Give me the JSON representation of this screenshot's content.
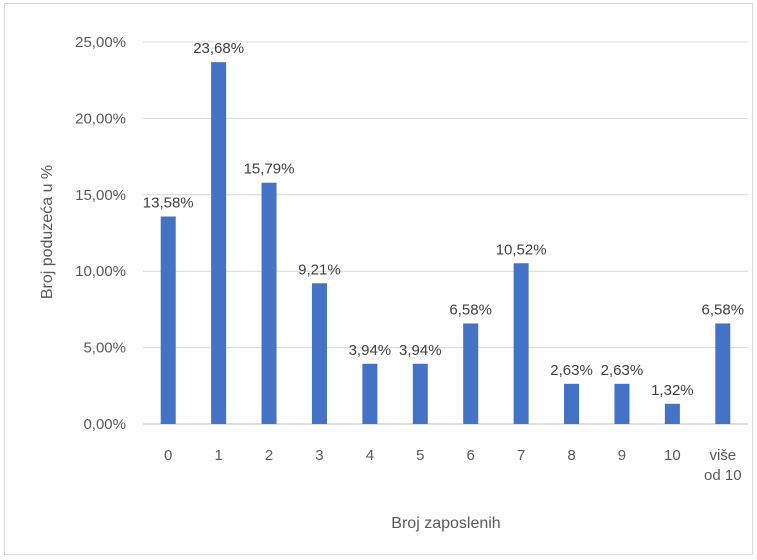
{
  "chart_data": {
    "type": "bar",
    "categories": [
      "0",
      "1",
      "2",
      "3",
      "4",
      "5",
      "6",
      "7",
      "8",
      "9",
      "10",
      "više od 10"
    ],
    "values": [
      13.58,
      23.68,
      15.79,
      9.21,
      3.94,
      3.94,
      6.58,
      10.52,
      2.63,
      2.63,
      1.32,
      6.58
    ],
    "data_labels": [
      "13,58%",
      "23,68%",
      "15,79%",
      "9,21%",
      "3,94%",
      "3,94%",
      "6,58%",
      "10,52%",
      "2,63%",
      "2,63%",
      "1,32%",
      "6,58%"
    ],
    "y_ticks": [
      0,
      5,
      10,
      15,
      20,
      25
    ],
    "y_tick_labels": [
      "0,00%",
      "5,00%",
      "10,00%",
      "15,00%",
      "20,00%",
      "25,00%"
    ],
    "ylim": [
      0,
      25
    ],
    "xlabel": "Broj zaposlenih",
    "ylabel": "Broj poduzeća u %",
    "grid": true,
    "legend": "none",
    "bar_color": "#4472c4",
    "grid_color": "#d9d9d9"
  }
}
